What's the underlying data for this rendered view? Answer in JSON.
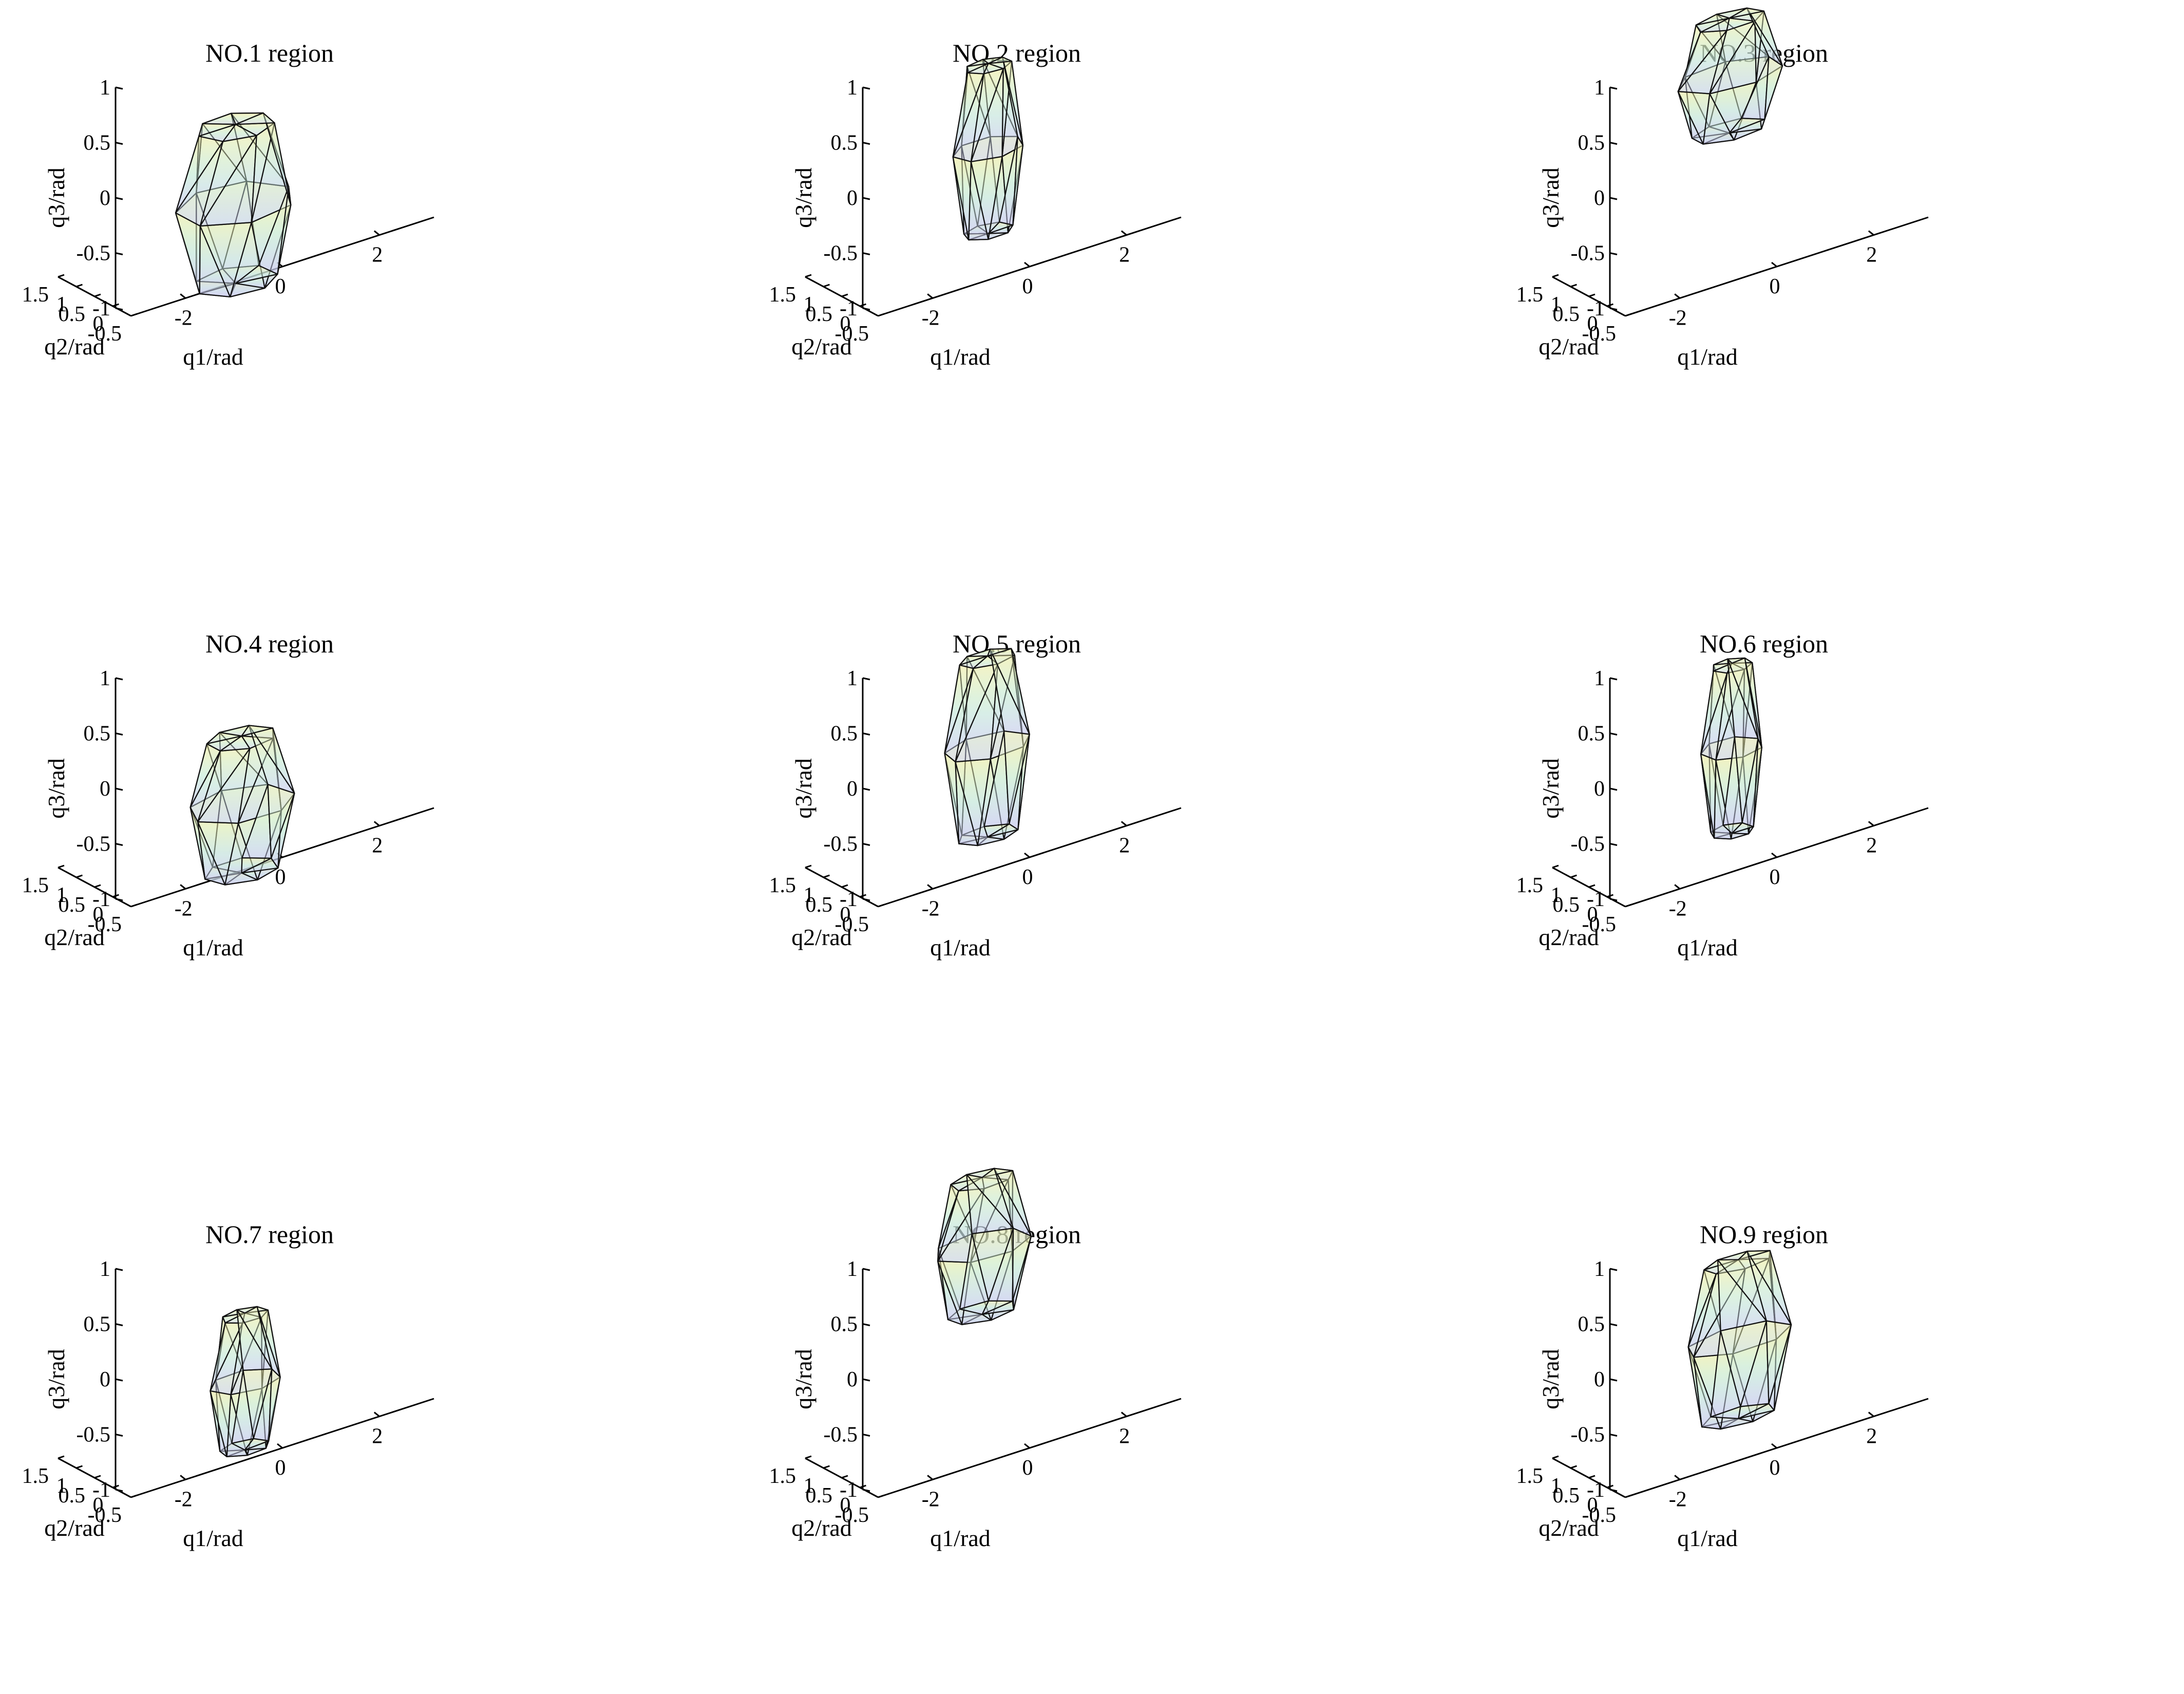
{
  "figure": {
    "colors": {
      "axis": "#000000",
      "edge": "#111111",
      "face_top": "#f4efa6",
      "face_mid": "#c7ecd9",
      "face_bottom": "#c9c6f2"
    }
  },
  "chart_data": [
    {
      "type": "3d-convex-hull",
      "title": "NO.1 region",
      "xlabel": "q1/rad",
      "ylabel": "q2/rad",
      "zlabel": "q3/rad",
      "xlim": [
        -3,
        3
      ],
      "ylim": [
        -0.5,
        1.5
      ],
      "zlim": [
        -1,
        1
      ],
      "xticks": [
        "-2",
        "0",
        "2"
      ],
      "yticks": [
        "-0.5",
        "0",
        "0.5",
        "1",
        "1.5"
      ],
      "zticks": [
        "-1",
        "-0.5",
        "0",
        "0.5",
        "1"
      ],
      "hull": {
        "q1_range": [
          -1.2,
          0.9
        ],
        "q2_range": [
          -0.2,
          1.35
        ],
        "q3_range": [
          -1.3,
          0.1
        ]
      }
    },
    {
      "type": "3d-convex-hull",
      "title": "NO.2 region",
      "xlabel": "q1/rad",
      "ylabel": "q2/rad",
      "zlabel": "q3/rad",
      "xlim": [
        -3,
        3
      ],
      "ylim": [
        -0.5,
        1.5
      ],
      "zlim": [
        -1,
        1
      ],
      "xticks": [
        "-2",
        "0",
        "2"
      ],
      "yticks": [
        "-0.5",
        "0",
        "0.5",
        "1",
        "1.5"
      ],
      "zticks": [
        "-1",
        "-0.5",
        "0",
        "0.5",
        "1"
      ],
      "hull": {
        "q1_range": [
          -0.6,
          0.7
        ],
        "q2_range": [
          0.3,
          1.1
        ],
        "q3_range": [
          -0.9,
          0.6
        ]
      }
    },
    {
      "type": "3d-convex-hull",
      "title": "NO.3 region",
      "xlabel": "q1/rad",
      "ylabel": "q2/rad",
      "zlabel": "q3/rad",
      "xlim": [
        -3,
        3
      ],
      "ylim": [
        -0.5,
        1.5
      ],
      "zlim": [
        -1,
        1
      ],
      "xticks": [
        "-2",
        "0",
        "2"
      ],
      "yticks": [
        "-0.5",
        "0",
        "0.5",
        "1",
        "1.5"
      ],
      "zticks": [
        "-1",
        "-0.5",
        "0",
        "0.5",
        "1"
      ],
      "hull": {
        "q1_range": [
          -1.0,
          1.0
        ],
        "q2_range": [
          0.3,
          1.3
        ],
        "q3_range": [
          0.0,
          1.0
        ]
      }
    },
    {
      "type": "3d-convex-hull",
      "title": "NO.4 region",
      "xlabel": "q1/rad",
      "ylabel": "q2/rad",
      "zlabel": "q3/rad",
      "xlim": [
        -3,
        3
      ],
      "ylim": [
        -0.5,
        1.5
      ],
      "zlim": [
        -1,
        1
      ],
      "xticks": [
        "-2",
        "0",
        "2"
      ],
      "yticks": [
        "-0.5",
        "0",
        "0.5",
        "1",
        "1.5"
      ],
      "zticks": [
        "-1",
        "-0.5",
        "0",
        "0.5",
        "1"
      ],
      "hull": {
        "q1_range": [
          -1.0,
          0.9
        ],
        "q2_range": [
          -0.1,
          1.2
        ],
        "q3_range": [
          -1.3,
          -0.1
        ]
      }
    },
    {
      "type": "3d-convex-hull",
      "title": "NO.5 region",
      "xlabel": "q1/rad",
      "ylabel": "q2/rad",
      "zlabel": "q3/rad",
      "xlim": [
        -3,
        3
      ],
      "ylim": [
        -0.5,
        1.5
      ],
      "zlim": [
        -1,
        1
      ],
      "xticks": [
        "-2",
        "0",
        "2"
      ],
      "yticks": [
        "-0.5",
        "0",
        "0.5",
        "1",
        "1.5"
      ],
      "zticks": [
        "-1",
        "-0.5",
        "0",
        "0.5",
        "1"
      ],
      "hull": {
        "q1_range": [
          -0.8,
          0.8
        ],
        "q2_range": [
          0.2,
          1.1
        ],
        "q3_range": [
          -1.0,
          0.6
        ]
      }
    },
    {
      "type": "3d-convex-hull",
      "title": "NO.6 region",
      "xlabel": "q1/rad",
      "ylabel": "q2/rad",
      "zlabel": "q3/rad",
      "xlim": [
        -3,
        3
      ],
      "ylim": [
        -0.5,
        1.5
      ],
      "zlim": [
        -1,
        1
      ],
      "xticks": [
        "-2",
        "0",
        "2"
      ],
      "yticks": [
        "-0.5",
        "0",
        "0.5",
        "1",
        "1.5"
      ],
      "zticks": [
        "-1",
        "-0.5",
        "0",
        "0.5",
        "1"
      ],
      "hull": {
        "q1_range": [
          -0.5,
          0.6
        ],
        "q2_range": [
          0.4,
          1.2
        ],
        "q3_range": [
          -1.0,
          0.5
        ]
      }
    },
    {
      "type": "3d-convex-hull",
      "title": "NO.7 region",
      "xlabel": "q1/rad",
      "ylabel": "q2/rad",
      "zlabel": "q3/rad",
      "xlim": [
        -3,
        3
      ],
      "ylim": [
        -0.5,
        1.5
      ],
      "zlim": [
        -1,
        1
      ],
      "xticks": [
        "-2",
        "0",
        "2"
      ],
      "yticks": [
        "-0.5",
        "0",
        "0.5",
        "1",
        "1.5"
      ],
      "zticks": [
        "-1",
        "-0.5",
        "0",
        "0.5",
        "1"
      ],
      "hull": {
        "q1_range": [
          -0.6,
          0.7
        ],
        "q2_range": [
          0.2,
          1.0
        ],
        "q3_range": [
          -1.2,
          0.0
        ]
      }
    },
    {
      "type": "3d-convex-hull",
      "title": "NO.8 region",
      "xlabel": "q1/rad",
      "ylabel": "q2/rad",
      "zlabel": "q3/rad",
      "xlim": [
        -3,
        3
      ],
      "ylim": [
        -0.5,
        1.5
      ],
      "zlim": [
        -1,
        1
      ],
      "xticks": [
        "-2",
        "0",
        "2"
      ],
      "yticks": [
        "-0.5",
        "0",
        "0.5",
        "1",
        "1.5"
      ],
      "zticks": [
        "-1",
        "-0.5",
        "0",
        "0.5",
        "1"
      ],
      "hull": {
        "q1_range": [
          -0.9,
          0.9
        ],
        "q2_range": [
          0.3,
          1.3
        ],
        "q3_range": [
          0.0,
          1.2
        ]
      }
    },
    {
      "type": "3d-convex-hull",
      "title": "NO.9 region",
      "xlabel": "q1/rad",
      "ylabel": "q2/rad",
      "zlabel": "q3/rad",
      "xlim": [
        -3,
        3
      ],
      "ylim": [
        -0.5,
        1.5
      ],
      "zlim": [
        -1,
        1
      ],
      "xticks": [
        "-2",
        "0",
        "2"
      ],
      "yticks": [
        "-0.5",
        "0",
        "0.5",
        "1",
        "1.5"
      ],
      "zticks": [
        "-1",
        "-0.5",
        "0",
        "0.5",
        "1"
      ],
      "hull": {
        "q1_range": [
          -1.0,
          1.0
        ],
        "q2_range": [
          0.1,
          1.0
        ],
        "q3_range": [
          -0.9,
          0.5
        ]
      }
    }
  ]
}
